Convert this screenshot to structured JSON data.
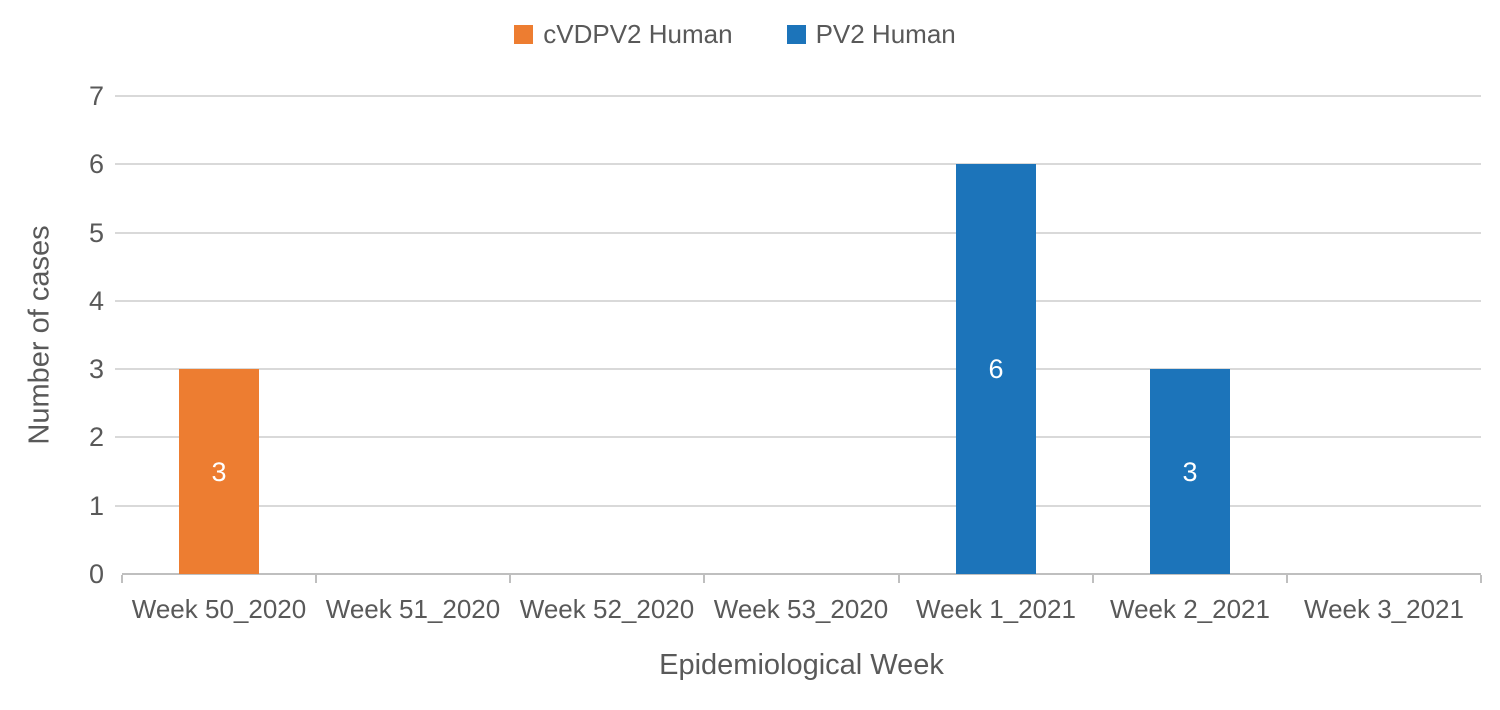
{
  "chart_data": {
    "type": "bar",
    "mode": "stacked-single-series-per-category",
    "categories": [
      "Week 50_2020",
      "Week 51_2020",
      "Week 52_2020",
      "Week 53_2020",
      "Week 1_2021",
      "Week 2_2021",
      "Week 3_2021"
    ],
    "series": [
      {
        "name": "cVDPV2 Human",
        "color": "#ED7D31",
        "values": [
          3,
          0,
          0,
          0,
          0,
          0,
          0
        ]
      },
      {
        "name": "PV2 Human",
        "color": "#1C74BA",
        "values": [
          0,
          0,
          0,
          0,
          6,
          3,
          0
        ]
      }
    ],
    "xlabel": "Epidemiological Week",
    "ylabel": "Number of cases",
    "ylim": [
      0,
      7
    ],
    "yticks": [
      0,
      1,
      2,
      3,
      4,
      5,
      6,
      7
    ],
    "grid": true,
    "legend_position": "top-center",
    "data_labels": {
      "show": true,
      "position": "center",
      "color": "#FFFFFF"
    }
  },
  "styles": {
    "background": "#FFFFFF",
    "text_color": "#595959",
    "grid_color": "#D9D9D9",
    "axis_color": "#BFBFBF"
  }
}
